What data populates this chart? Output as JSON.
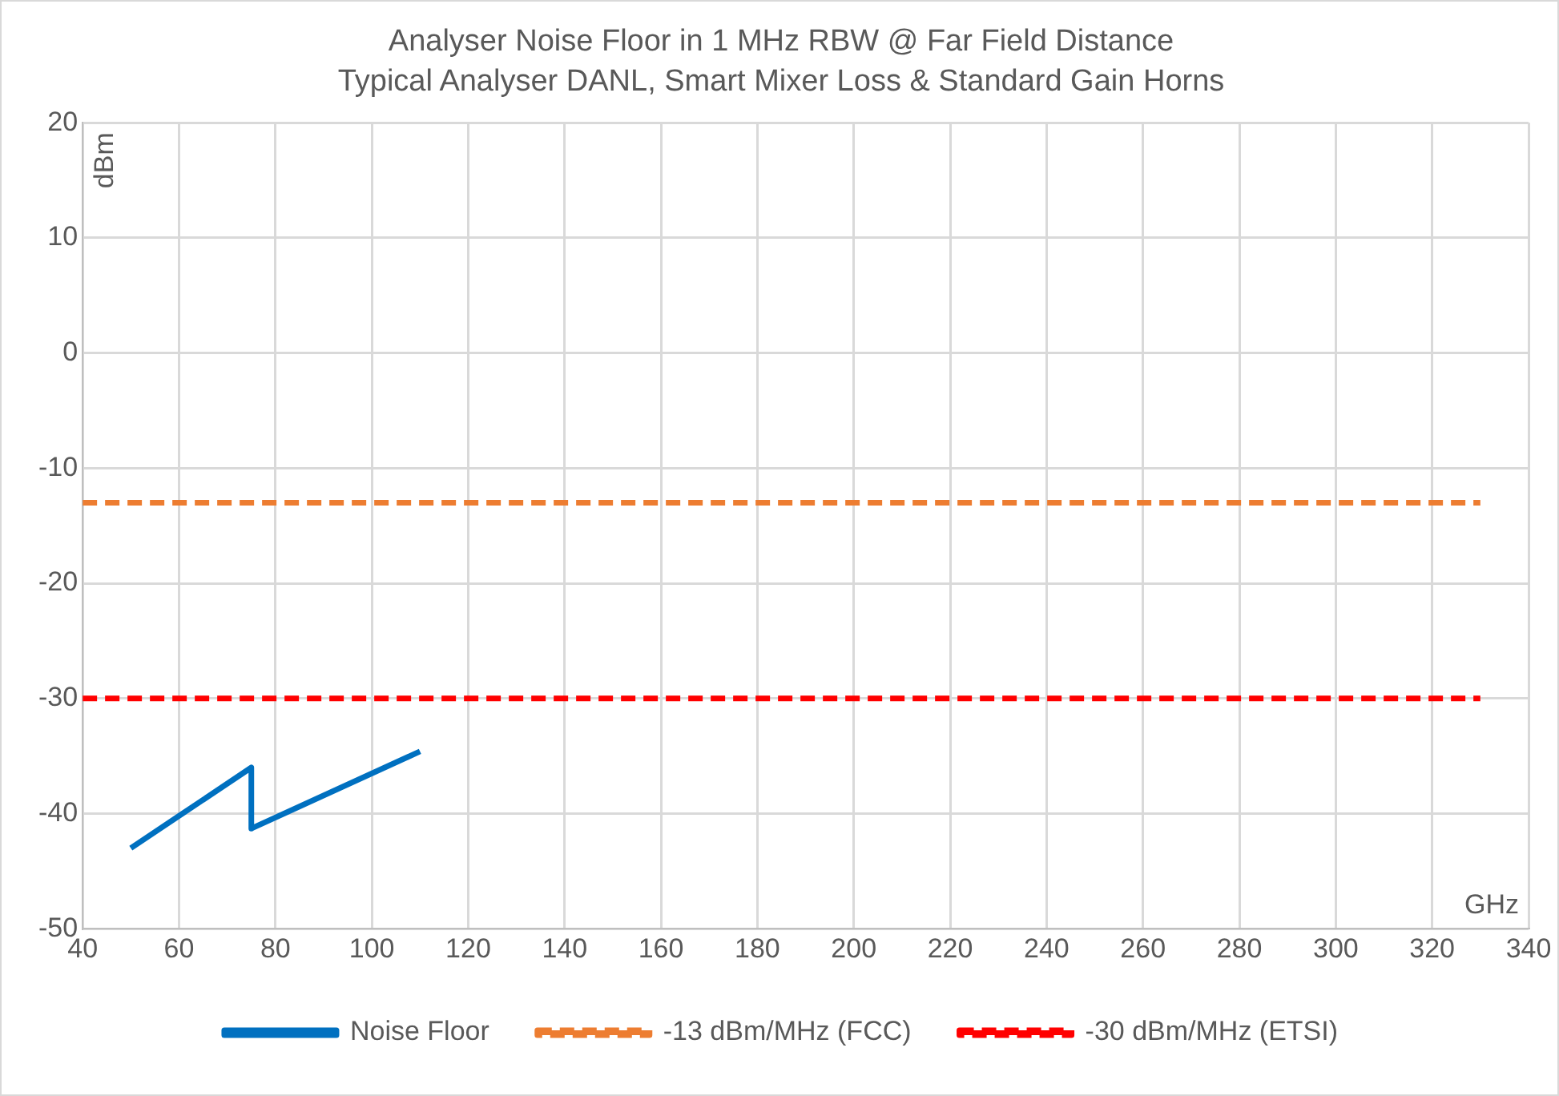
{
  "chart_data": {
    "type": "line",
    "title": "Analyser Noise Floor in 1 MHz RBW @ Far Field Distance",
    "subtitle": "Typical Analyser DANL, Smart Mixer Loss & Standard Gain Horns",
    "xlabel": "GHz",
    "ylabel": "dBm",
    "series": [
      {
        "name": "Noise Floor",
        "color": "#0070c0",
        "x": [
          50,
          75,
          75,
          110
        ],
        "values": [
          -43,
          -36,
          -41.3,
          -34.6
        ],
        "line_style": "solid"
      },
      {
        "name": "-13 dBm/MHz (FCC)",
        "color": "#ed7d31",
        "x": [
          40,
          330
        ],
        "values": [
          -13,
          -13
        ],
        "line_style": "dashed"
      },
      {
        "name": "-30 dBm/MHz (ETSI)",
        "color": "#ff0000",
        "x": [
          40,
          330
        ],
        "values": [
          -30,
          -30
        ],
        "line_style": "dashed"
      }
    ],
    "xlim": [
      40,
      340
    ],
    "xticks": [
      40,
      60,
      80,
      100,
      120,
      140,
      160,
      180,
      200,
      220,
      240,
      260,
      280,
      300,
      320,
      340
    ],
    "ylim": [
      -50,
      20
    ],
    "yticks": [
      -50,
      -40,
      -30,
      -20,
      -10,
      0,
      10,
      20
    ],
    "grid": true,
    "legend": "bottom",
    "marker": "none"
  }
}
